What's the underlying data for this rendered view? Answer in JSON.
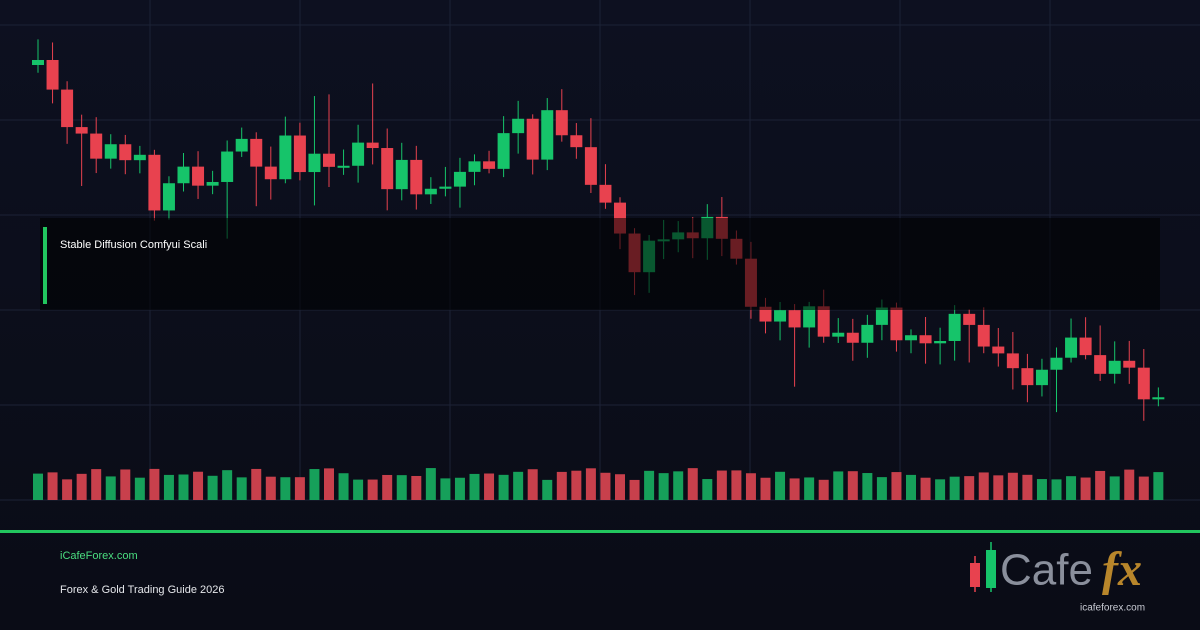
{
  "header": {
    "title": "Stable Diffusion Comfyui Scali"
  },
  "footer": {
    "site": "iCafeForex.com",
    "subtitle": "Forex & Gold Trading Guide 2026"
  },
  "logo": {
    "text": "Cafe",
    "accent": "fx",
    "url": "icafeforex.com"
  }
}
